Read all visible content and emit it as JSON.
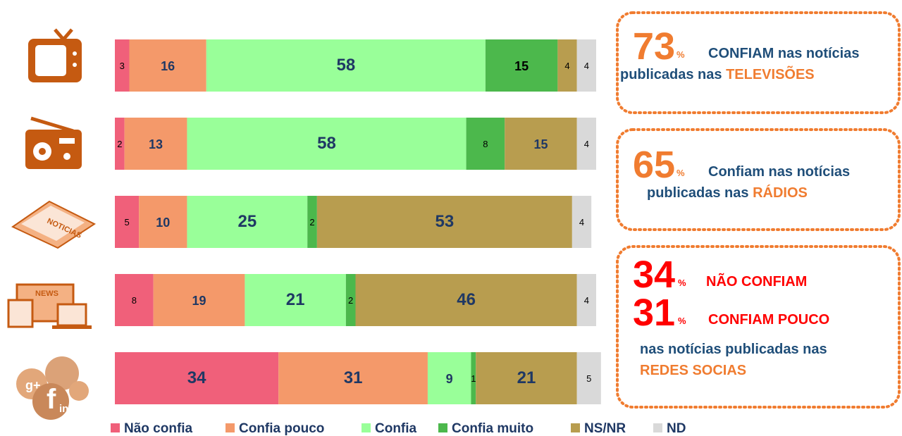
{
  "chart_data": {
    "type": "stacked-bar-horizontal",
    "categories": [
      null,
      null,
      null,
      null,
      null
    ],
    "xlim": [
      0,
      100
    ],
    "legend": "bottom",
    "series": [
      {
        "name": "Não confia",
        "color": "#f0607a",
        "values": [
          3,
          2,
          5,
          8,
          34
        ]
      },
      {
        "name": "Confia pouco",
        "color": "#f4996a",
        "values": [
          16,
          13,
          10,
          19,
          31
        ]
      },
      {
        "name": "Confia",
        "color": "#99ff99",
        "values": [
          58,
          58,
          25,
          21,
          9
        ]
      },
      {
        "name": "Confia muito",
        "color": "#4cb84c",
        "values": [
          15,
          8,
          2,
          2,
          1
        ]
      },
      {
        "name": "NS/NR",
        "color": "#b89d4f",
        "values": [
          4,
          15,
          53,
          46,
          21
        ]
      },
      {
        "name": "ND",
        "color": "#d9d9d9",
        "values": [
          4,
          4,
          4,
          4,
          5
        ]
      }
    ],
    "annotations": [
      {
        "number": "73",
        "unit": "%",
        "text": "CONFIAM nas notícias",
        "line2": "publicadas nas",
        "highlight": "TELEVISÕES"
      },
      {
        "number": "65",
        "unit": "%",
        "text": "Confiam nas notícias",
        "line2": "publicadas nas",
        "highlight": "RÁDIOS"
      },
      {
        "number": "34",
        "unit": "%",
        "text": "NÃO CONFIAM",
        "number2": "31",
        "unit2": "%",
        "text2": "CONFIAM POUCO",
        "line2": "nas notícias publicadas nas",
        "highlight": "REDES SOCIAS"
      }
    ]
  }
}
